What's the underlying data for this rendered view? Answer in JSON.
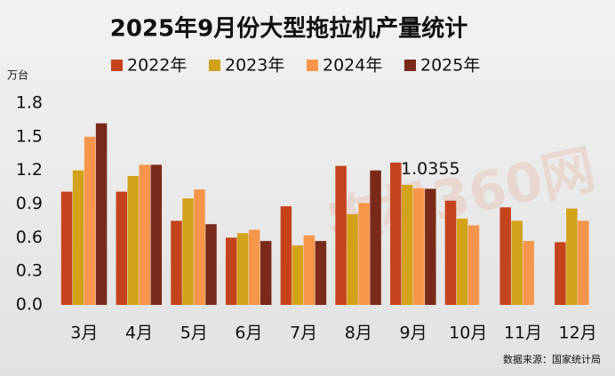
{
  "chart_data": {
    "type": "bar",
    "title": "2025年9月份大型拖拉机产量统计",
    "y_unit": "万台",
    "source": "数据来源：国家统计局",
    "watermark": "农机360网",
    "categories": [
      "3月",
      "4月",
      "5月",
      "6月",
      "7月",
      "8月",
      "9月",
      "10月",
      "11月",
      "12月"
    ],
    "series": [
      {
        "name": "2022年",
        "color": "#c4431c",
        "values": [
          1.01,
          1.01,
          0.75,
          0.6,
          0.88,
          1.24,
          1.27,
          0.93,
          0.87,
          0.56
        ]
      },
      {
        "name": "2023年",
        "color": "#d2a21a",
        "values": [
          1.2,
          1.15,
          0.95,
          0.64,
          0.53,
          0.81,
          1.07,
          0.77,
          0.75,
          0.86
        ]
      },
      {
        "name": "2024年",
        "color": "#f7964a",
        "values": [
          1.5,
          1.25,
          1.03,
          0.67,
          0.62,
          0.91,
          1.04,
          0.71,
          0.57,
          0.75
        ]
      },
      {
        "name": "2025年",
        "color": "#7a2a1a",
        "values": [
          1.62,
          1.25,
          0.72,
          0.57,
          0.57,
          1.2,
          1.0355,
          null,
          null,
          null
        ]
      }
    ],
    "data_labels": [
      {
        "series": 3,
        "index": 6
      }
    ],
    "ylim": [
      0,
      1.8
    ],
    "yticks": [
      {
        "value": 0,
        "label": "0.0"
      },
      0.3,
      0.6,
      0.9,
      1.2,
      1.5,
      1.8
    ],
    "grid": false
  }
}
